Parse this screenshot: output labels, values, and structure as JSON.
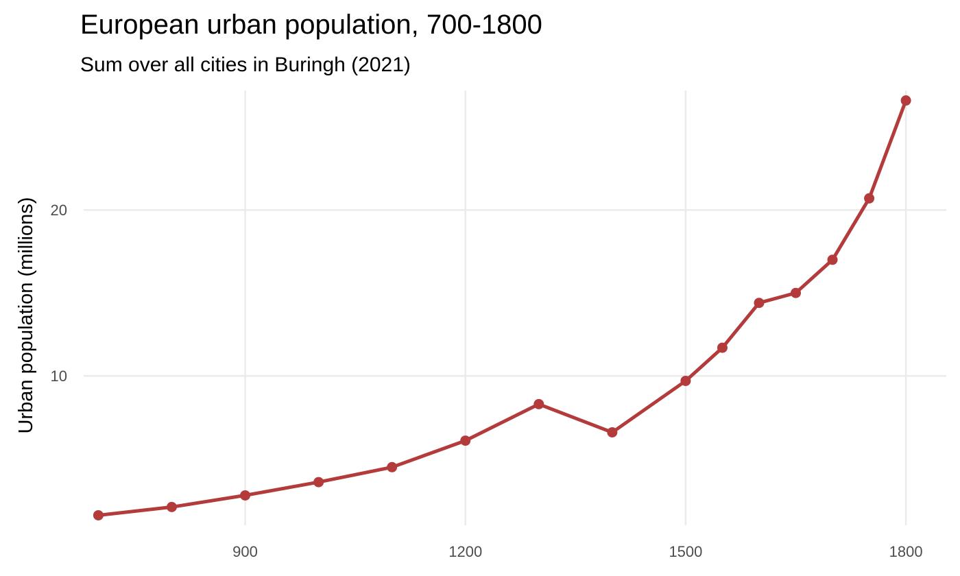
{
  "chart_data": {
    "type": "line",
    "title": "European urban population, 700-1800",
    "subtitle": "Sum over all cities in Buringh (2021)",
    "xlabel": "",
    "ylabel": "Urban population (millions)",
    "x_ticks": [
      900,
      1200,
      1500,
      1800
    ],
    "y_ticks": [
      10,
      20
    ],
    "xlim": [
      680,
      1855
    ],
    "ylim": [
      1.0,
      27.2
    ],
    "grid": "major, light gray",
    "legend": "none",
    "color": "#b33b3b",
    "series": [
      {
        "x": [
          700,
          800,
          900,
          1000,
          1100,
          1200,
          1300,
          1400,
          1500,
          1550,
          1600,
          1650,
          1700,
          1750,
          1800
        ],
        "y": [
          1.6,
          2.1,
          2.8,
          3.6,
          4.5,
          6.1,
          8.3,
          6.6,
          9.7,
          11.7,
          14.4,
          15.0,
          17.0,
          20.7,
          26.6
        ]
      }
    ]
  }
}
